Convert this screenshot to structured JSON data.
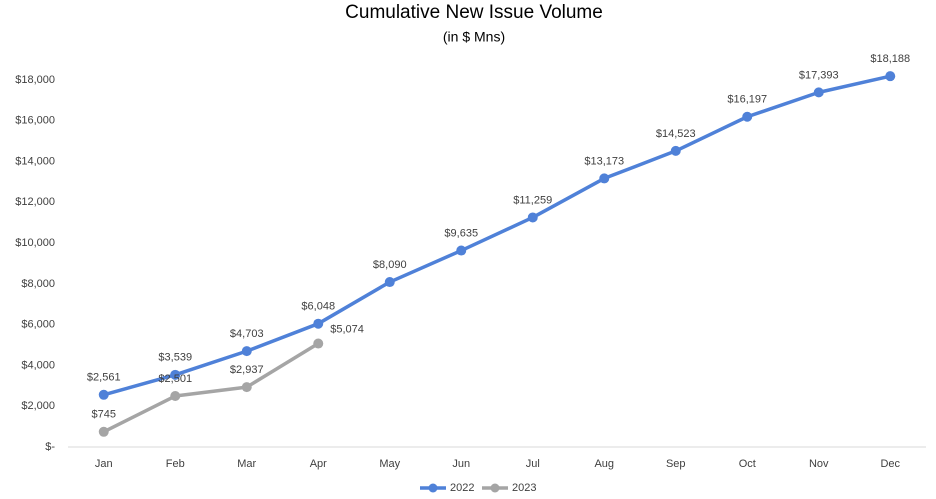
{
  "chart_data": {
    "type": "line",
    "title": "Cumulative New Issue Volume",
    "subtitle": "(in $ Mns)",
    "categories": [
      "Jan",
      "Feb",
      "Mar",
      "Apr",
      "May",
      "Jun",
      "Jul",
      "Aug",
      "Sep",
      "Oct",
      "Nov",
      "Dec"
    ],
    "series": [
      {
        "name": "2022",
        "color": "#4f81d8",
        "values": [
          2561,
          3539,
          4703,
          6048,
          8090,
          9635,
          11259,
          13173,
          14523,
          16197,
          17393,
          18188
        ],
        "value_labels": [
          "$2,561",
          "$3,539",
          "$4,703",
          "$6,048",
          "$8,090",
          "$9,635",
          "$11,259",
          "$13,173",
          "$14,523",
          "$16,197",
          "$17,393",
          "$18,188"
        ]
      },
      {
        "name": "2023",
        "color": "#a5a5a5",
        "values": [
          745,
          2501,
          2937,
          5074,
          null,
          null,
          null,
          null,
          null,
          null,
          null,
          null
        ],
        "value_labels": [
          "$745",
          "$2,501",
          "$2,937",
          "$5,074",
          null,
          null,
          null,
          null,
          null,
          null,
          null,
          null
        ]
      }
    ],
    "ylim": [
      0,
      18000
    ],
    "yticks": [
      {
        "value": 0,
        "label": "$-"
      },
      {
        "value": 2000,
        "label": "$2,000"
      },
      {
        "value": 4000,
        "label": "$4,000"
      },
      {
        "value": 6000,
        "label": "$6,000"
      },
      {
        "value": 8000,
        "label": "$8,000"
      },
      {
        "value": 10000,
        "label": "$10,000"
      },
      {
        "value": 12000,
        "label": "$12,000"
      },
      {
        "value": 14000,
        "label": "$14,000"
      },
      {
        "value": 16000,
        "label": "$16,000"
      },
      {
        "value": 18000,
        "label": "$18,000"
      }
    ],
    "grid": false,
    "legend": "bottom"
  }
}
